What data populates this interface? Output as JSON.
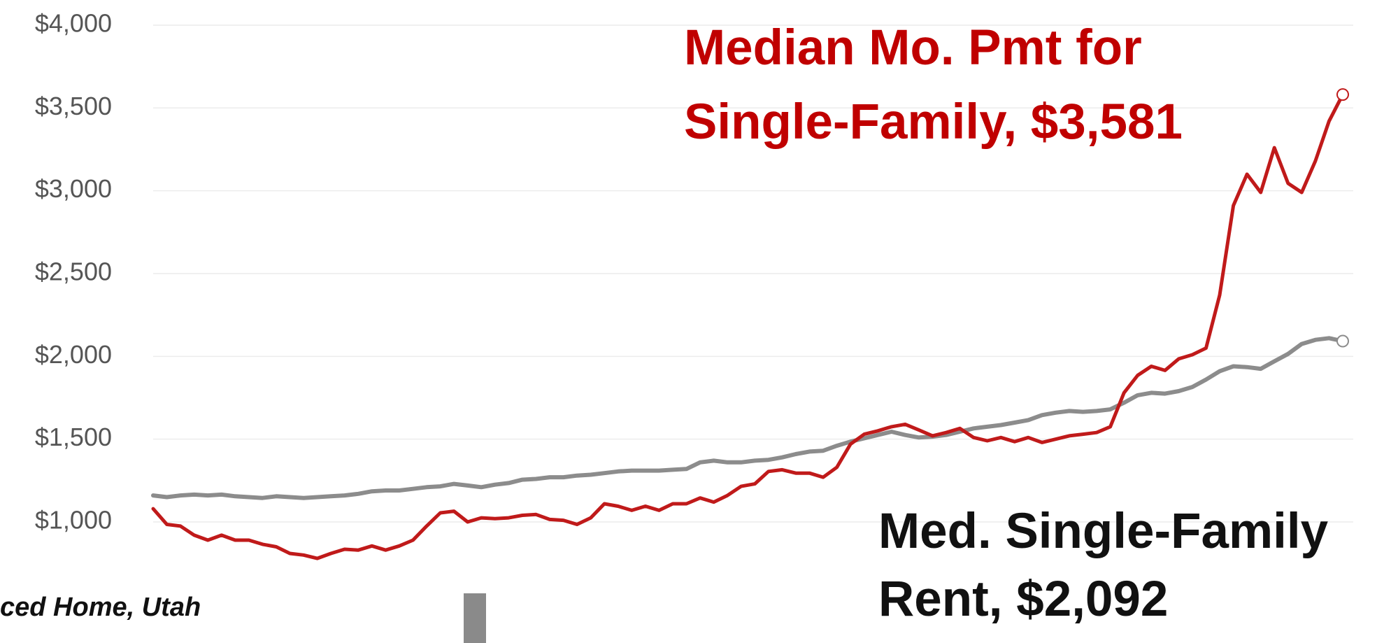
{
  "chart_data": {
    "type": "line",
    "title": "ced Home, Utah",
    "ylim": [
      700,
      4100
    ],
    "yticks": [
      {
        "value": 1000,
        "label": "$1,000"
      },
      {
        "value": 1500,
        "label": "$1,500"
      },
      {
        "value": 2000,
        "label": "$2,000"
      },
      {
        "value": 2500,
        "label": "$2,500"
      },
      {
        "value": 3000,
        "label": "$3,000"
      },
      {
        "value": 3500,
        "label": "$3,500"
      },
      {
        "value": 4000,
        "label": "$4,000"
      }
    ],
    "grid": true,
    "series": [
      {
        "name": "Median Mo. Pmt for Single-Family",
        "color": "#c01a1a",
        "values": [
          1080,
          985,
          975,
          920,
          890,
          920,
          890,
          890,
          865,
          850,
          810,
          800,
          780,
          810,
          835,
          830,
          855,
          830,
          855,
          890,
          975,
          1055,
          1065,
          1000,
          1025,
          1020,
          1025,
          1040,
          1045,
          1015,
          1010,
          985,
          1025,
          1110,
          1095,
          1070,
          1095,
          1070,
          1110,
          1110,
          1145,
          1120,
          1160,
          1215,
          1230,
          1305,
          1315,
          1295,
          1295,
          1270,
          1330,
          1470,
          1530,
          1550,
          1575,
          1590,
          1555,
          1520,
          1540,
          1565,
          1510,
          1490,
          1510,
          1485,
          1510,
          1480,
          1500,
          1520,
          1530,
          1540,
          1575,
          1780,
          1885,
          1940,
          1915,
          1985,
          2010,
          2050,
          2370,
          2910,
          3100,
          2990,
          3260,
          3045,
          2990,
          3180,
          3420,
          3581
        ]
      },
      {
        "name": "Med. Single-Family Rent",
        "color": "#8c8c8c",
        "values": [
          1160,
          1150,
          1160,
          1165,
          1160,
          1165,
          1155,
          1150,
          1145,
          1155,
          1150,
          1145,
          1150,
          1155,
          1160,
          1170,
          1185,
          1190,
          1190,
          1200,
          1210,
          1215,
          1230,
          1220,
          1210,
          1225,
          1235,
          1255,
          1260,
          1270,
          1270,
          1280,
          1285,
          1295,
          1305,
          1310,
          1310,
          1310,
          1315,
          1320,
          1360,
          1370,
          1360,
          1360,
          1370,
          1375,
          1390,
          1410,
          1425,
          1430,
          1460,
          1485,
          1505,
          1525,
          1545,
          1525,
          1510,
          1515,
          1525,
          1545,
          1565,
          1575,
          1585,
          1600,
          1615,
          1645,
          1660,
          1670,
          1665,
          1670,
          1680,
          1720,
          1765,
          1780,
          1775,
          1790,
          1815,
          1860,
          1910,
          1940,
          1935,
          1925,
          1970,
          2015,
          2075,
          2100,
          2110,
          2092
        ]
      }
    ],
    "annotations": [
      {
        "lines": [
          "Median Mo. Pmt for",
          "Single-Family, $3,581"
        ],
        "color": "#c00000"
      },
      {
        "lines": [
          "Med. Single-Family",
          "Rent, $2,092"
        ],
        "color": "#111111"
      }
    ]
  }
}
